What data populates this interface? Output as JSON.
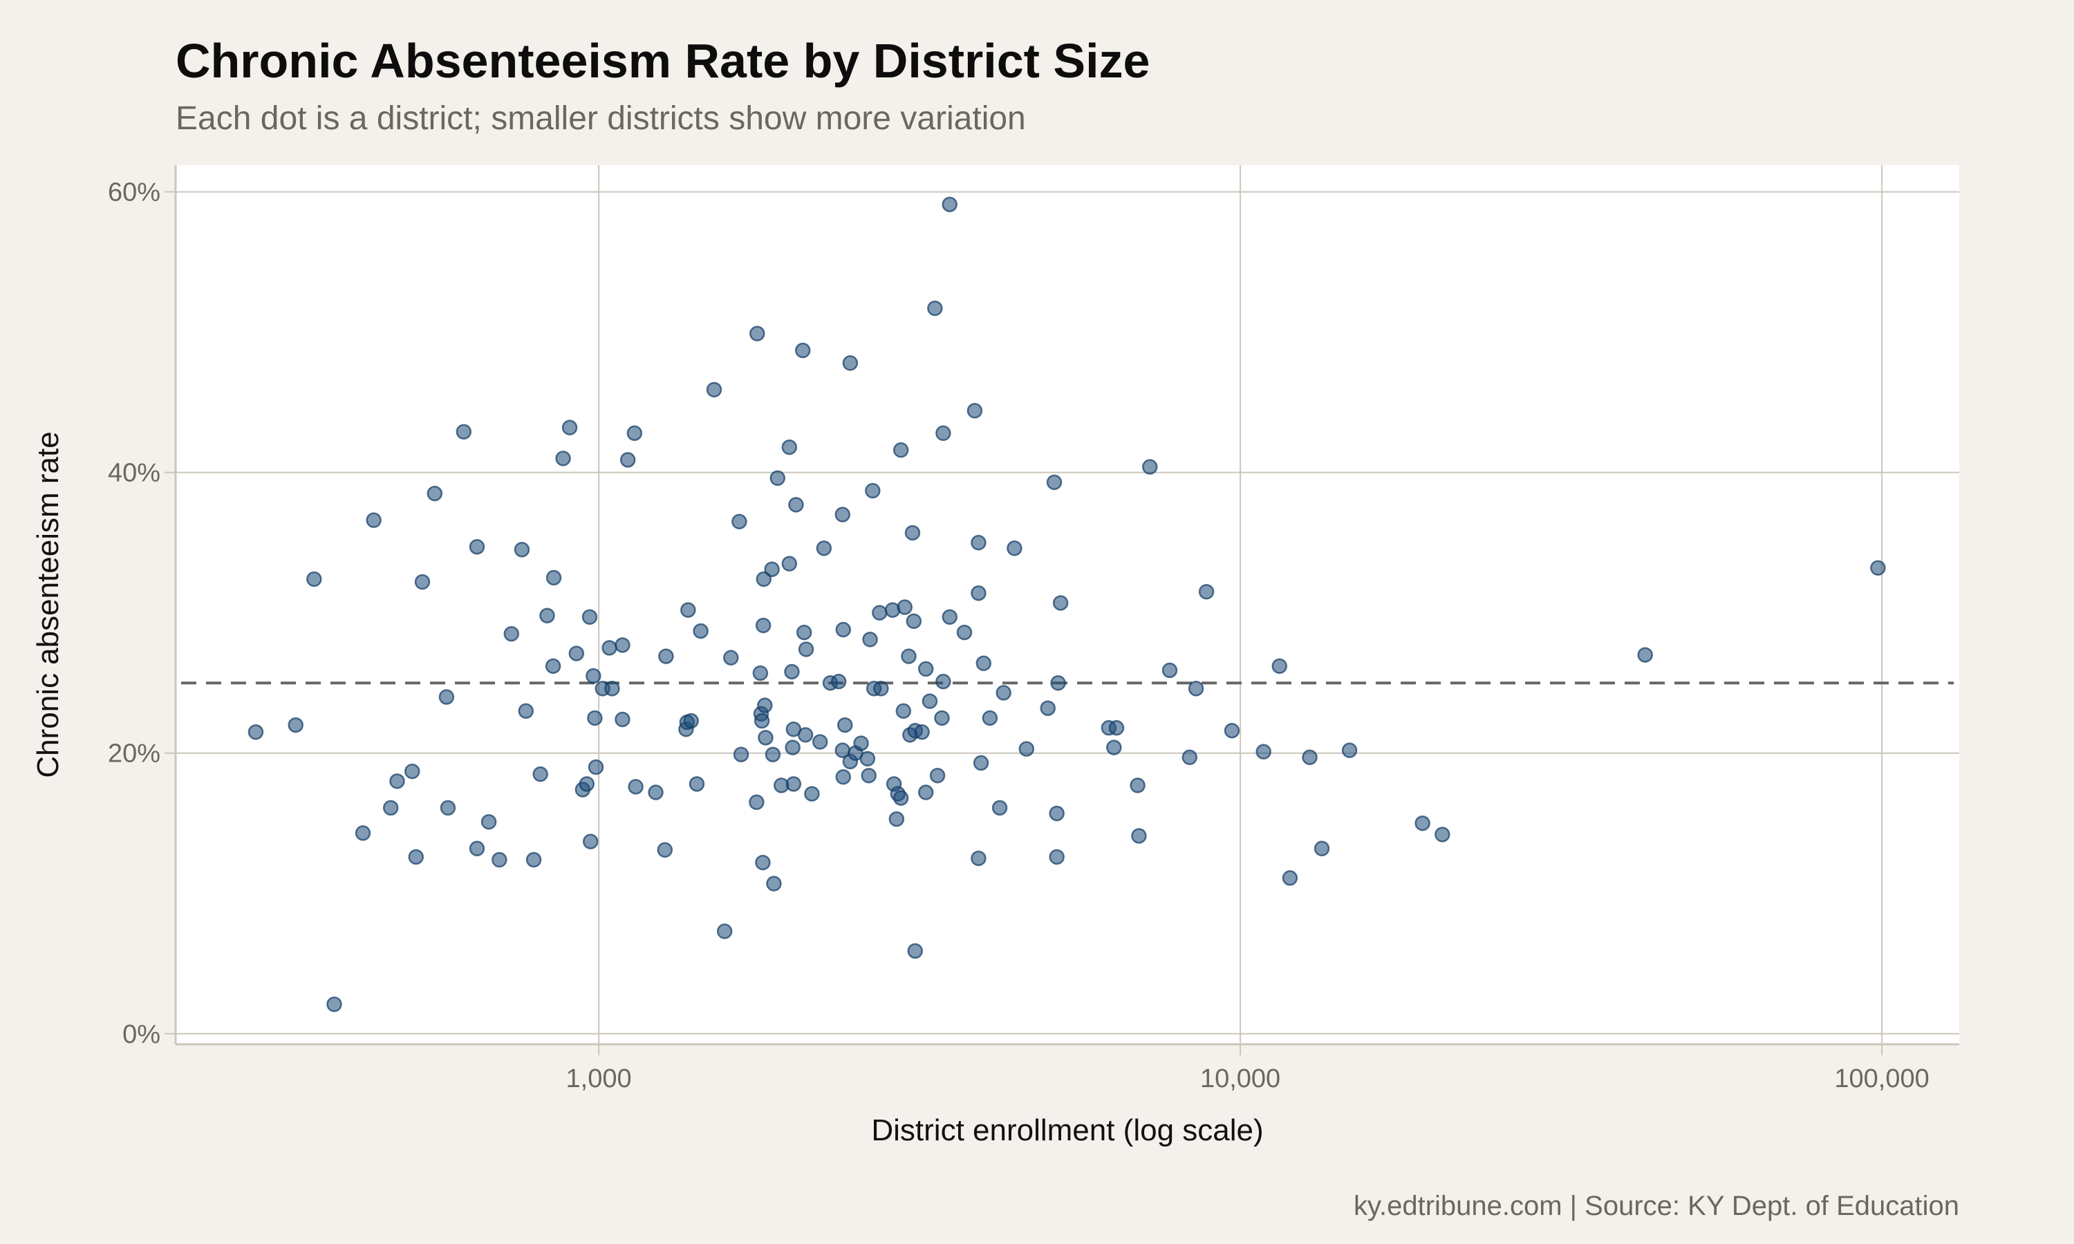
{
  "title": "Chronic Absenteeism Rate by District Size",
  "subtitle": "Each dot is a district; smaller districts show more variation",
  "caption": "ky.edtribune.com | Source: KY Dept. of Education",
  "colors": {
    "background": "#f4f1ec",
    "panel": "#ffffff",
    "grid": "#ccc5bb",
    "point": "#1b4a7a",
    "reference_line": "#666666"
  },
  "chart_data": {
    "type": "scatter",
    "title": "Chronic Absenteeism Rate by District Size",
    "xlabel": "District enrollment (log scale)",
    "ylabel": "Chronic absenteeism rate",
    "x_scale": "log",
    "xlim": [
      219,
      132000
    ],
    "ylim": [
      -0.75,
      61.9
    ],
    "x_ticks": [
      {
        "value": 1000,
        "label": "1,000"
      },
      {
        "value": 10000,
        "label": "10,000"
      },
      {
        "value": 100000,
        "label": "100,000"
      }
    ],
    "y_ticks": [
      {
        "value": 0,
        "label": "0%"
      },
      {
        "value": 20,
        "label": "20%"
      },
      {
        "value": 40,
        "label": "40%"
      },
      {
        "value": 60,
        "label": "60%"
      }
    ],
    "grid": true,
    "reference_line": {
      "y": 25,
      "style": "dashed"
    },
    "points": [
      [
        292,
        21.5
      ],
      [
        337,
        22.0
      ],
      [
        360,
        32.4
      ],
      [
        387,
        2.1
      ],
      [
        429,
        14.3
      ],
      [
        446,
        36.6
      ],
      [
        474,
        16.1
      ],
      [
        485,
        18.0
      ],
      [
        512,
        18.7
      ],
      [
        519,
        12.6
      ],
      [
        531,
        32.2
      ],
      [
        555,
        38.5
      ],
      [
        579,
        24.0
      ],
      [
        582,
        16.1
      ],
      [
        616,
        42.9
      ],
      [
        646,
        13.2
      ],
      [
        646,
        34.7
      ],
      [
        674,
        15.1
      ],
      [
        700,
        12.4
      ],
      [
        731,
        28.5
      ],
      [
        759,
        34.5
      ],
      [
        770,
        23.0
      ],
      [
        792,
        12.4
      ],
      [
        811,
        18.5
      ],
      [
        831,
        29.8
      ],
      [
        851,
        32.5
      ],
      [
        849,
        26.2
      ],
      [
        880,
        41.0
      ],
      [
        901,
        43.2
      ],
      [
        923,
        27.1
      ],
      [
        944,
        17.4
      ],
      [
        958,
        17.8
      ],
      [
        968,
        29.7
      ],
      [
        971,
        13.7
      ],
      [
        981,
        25.5
      ],
      [
        986,
        22.5
      ],
      [
        990,
        19.0
      ],
      [
        1014,
        24.6
      ],
      [
        1039,
        27.5
      ],
      [
        1049,
        24.6
      ],
      [
        1089,
        27.7
      ],
      [
        1089,
        22.4
      ],
      [
        1110,
        40.9
      ],
      [
        1137,
        42.8
      ],
      [
        1142,
        17.6
      ],
      [
        1227,
        17.2
      ],
      [
        1268,
        13.1
      ],
      [
        1273,
        26.9
      ],
      [
        1368,
        21.7
      ],
      [
        1373,
        22.2
      ],
      [
        1378,
        30.2
      ],
      [
        1393,
        22.3
      ],
      [
        1422,
        17.8
      ],
      [
        1442,
        28.7
      ],
      [
        1513,
        45.9
      ],
      [
        1571,
        7.3
      ],
      [
        1607,
        26.8
      ],
      [
        1656,
        36.5
      ],
      [
        1667,
        19.9
      ],
      [
        1762,
        16.5
      ],
      [
        1766,
        49.9
      ],
      [
        1786,
        25.7
      ],
      [
        1791,
        22.8
      ],
      [
        1796,
        22.3
      ],
      [
        1802,
        12.2
      ],
      [
        1805,
        29.1
      ],
      [
        1808,
        32.4
      ],
      [
        1815,
        23.4
      ],
      [
        1820,
        21.1
      ],
      [
        1862,
        33.1
      ],
      [
        1868,
        19.9
      ],
      [
        1875,
        10.7
      ],
      [
        1900,
        39.6
      ],
      [
        1926,
        17.7
      ],
      [
        1982,
        41.8
      ],
      [
        1982,
        33.5
      ],
      [
        2000,
        25.8
      ],
      [
        2006,
        20.4
      ],
      [
        2012,
        17.8
      ],
      [
        2012,
        21.7
      ],
      [
        2030,
        37.7
      ],
      [
        2080,
        48.7
      ],
      [
        2090,
        28.6
      ],
      [
        2100,
        21.3
      ],
      [
        2105,
        27.4
      ],
      [
        2149,
        17.1
      ],
      [
        2213,
        20.8
      ],
      [
        2244,
        34.6
      ],
      [
        2296,
        25.0
      ],
      [
        2366,
        25.1
      ],
      [
        2399,
        37.0
      ],
      [
        2399,
        20.2
      ],
      [
        2405,
        28.8
      ],
      [
        2405,
        18.3
      ],
      [
        2420,
        22.0
      ],
      [
        2466,
        47.8
      ],
      [
        2466,
        19.4
      ],
      [
        2513,
        20.0
      ],
      [
        2564,
        20.7
      ],
      [
        2624,
        19.6
      ],
      [
        2636,
        18.4
      ],
      [
        2648,
        28.1
      ],
      [
        2673,
        38.7
      ],
      [
        2685,
        24.6
      ],
      [
        2754,
        24.6
      ],
      [
        2740,
        30.0
      ],
      [
        2871,
        30.2
      ],
      [
        2885,
        17.8
      ],
      [
        2912,
        15.3
      ],
      [
        2926,
        17.1
      ],
      [
        2958,
        41.6
      ],
      [
        2958,
        16.8
      ],
      [
        2985,
        23.0
      ],
      [
        2999,
        30.4
      ],
      [
        3042,
        26.9
      ],
      [
        3056,
        21.3
      ],
      [
        3084,
        35.7
      ],
      [
        3098,
        29.4
      ],
      [
        3113,
        21.6
      ],
      [
        3113,
        5.9
      ],
      [
        3190,
        21.5
      ],
      [
        3235,
        17.2
      ],
      [
        3235,
        26.0
      ],
      [
        3281,
        23.7
      ],
      [
        3342,
        51.7
      ],
      [
        3373,
        18.4
      ],
      [
        3443,
        42.8
      ],
      [
        3443,
        25.1
      ],
      [
        3427,
        22.5
      ],
      [
        3524,
        59.1
      ],
      [
        3524,
        29.7
      ],
      [
        3715,
        28.6
      ],
      [
        3855,
        44.4
      ],
      [
        3908,
        12.5
      ],
      [
        3908,
        35.0
      ],
      [
        3908,
        31.4
      ],
      [
        3944,
        19.3
      ],
      [
        3980,
        26.4
      ],
      [
        4071,
        22.5
      ],
      [
        4217,
        16.1
      ],
      [
        4276,
        24.3
      ],
      [
        4446,
        34.6
      ],
      [
        4642,
        20.3
      ],
      [
        5012,
        23.2
      ],
      [
        5129,
        39.3
      ],
      [
        5176,
        15.7
      ],
      [
        5176,
        12.6
      ],
      [
        5200,
        25.0
      ],
      [
        5247,
        30.7
      ],
      [
        6237,
        21.8
      ],
      [
        6354,
        20.4
      ],
      [
        6412,
        21.8
      ],
      [
        6918,
        17.7
      ],
      [
        6950,
        14.1
      ],
      [
        7228,
        40.4
      ],
      [
        7762,
        25.9
      ],
      [
        8337,
        19.7
      ],
      [
        8531,
        24.6
      ],
      [
        8855,
        31.5
      ],
      [
        9704,
        21.6
      ],
      [
        10870,
        20.1
      ],
      [
        11510,
        26.2
      ],
      [
        11950,
        11.1
      ],
      [
        12830,
        19.7
      ],
      [
        13400,
        13.2
      ],
      [
        14800,
        20.2
      ],
      [
        19230,
        15.0
      ],
      [
        20650,
        14.2
      ],
      [
        42760,
        27.0
      ],
      [
        98600,
        33.2
      ]
    ]
  }
}
